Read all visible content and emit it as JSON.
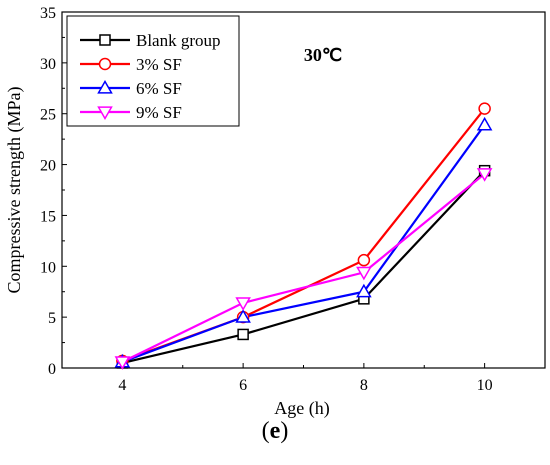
{
  "chart_data": {
    "type": "line",
    "title": "",
    "annotation": "30℃",
    "xlabel": "Age (h)",
    "ylabel": "Compressive strength (MPa)",
    "x": [
      4,
      6,
      8,
      10
    ],
    "xlim": [
      3,
      11
    ],
    "ylim": [
      0,
      35
    ],
    "xticks": [
      4,
      6,
      8,
      10
    ],
    "yticks": [
      0,
      5,
      10,
      15,
      20,
      25,
      30,
      35
    ],
    "grid": false,
    "legend_position": "top-left",
    "series": [
      {
        "name": "Blank group",
        "values": [
          0.5,
          3.3,
          6.8,
          19.4
        ],
        "color": "#000000",
        "marker": "square"
      },
      {
        "name": "3% SF",
        "values": [
          0.7,
          5.0,
          10.6,
          25.5
        ],
        "color": "#ff0000",
        "marker": "circle"
      },
      {
        "name": "6% SF",
        "values": [
          0.6,
          5.0,
          7.5,
          23.9
        ],
        "color": "#0000ff",
        "marker": "triangle-up"
      },
      {
        "name": "9% SF",
        "values": [
          0.6,
          6.4,
          9.4,
          19.1
        ],
        "color": "#ff00ff",
        "marker": "triangle-down"
      }
    ]
  },
  "panel_label": {
    "open": "(",
    "letter": "e",
    "close": ")"
  }
}
